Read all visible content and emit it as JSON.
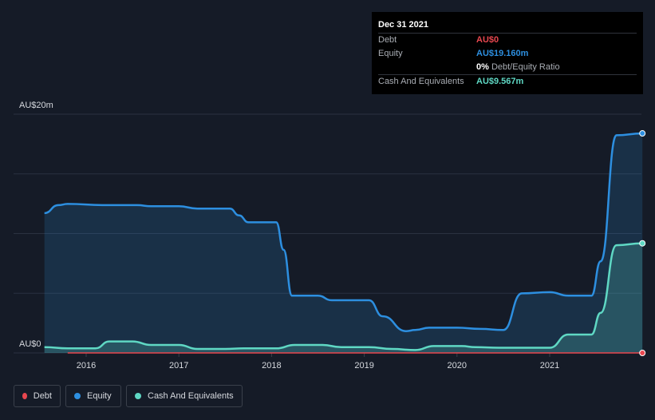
{
  "tooltip": {
    "date": "Dec 31 2021",
    "rows": [
      {
        "label": "Debt",
        "value": "AU$0",
        "color": "#e8474f"
      },
      {
        "label": "Equity",
        "value": "AU$19.160m",
        "color": "#2d8fe0"
      },
      {
        "label": "",
        "value": "0%",
        "sub": "Debt/Equity Ratio",
        "color": "#ffffff"
      },
      {
        "label": "Cash And Equivalents",
        "value": "AU$9.567m",
        "color": "#5fd8c4"
      }
    ]
  },
  "legend": [
    {
      "name": "Debt",
      "color": "#e8474f"
    },
    {
      "name": "Equity",
      "color": "#2d8fe0"
    },
    {
      "name": "Cash And Equivalents",
      "color": "#5fd8c4"
    }
  ],
  "chart_data": {
    "type": "area",
    "ylim": [
      0,
      20
    ],
    "y_tick_labels": [
      "AU$0",
      "AU$20m"
    ],
    "x_tick_labels": [
      "2016",
      "2017",
      "2018",
      "2019",
      "2020",
      "2021"
    ],
    "xlim": [
      2015.55,
      2022.0
    ],
    "grid": true,
    "legend_position": "bottom-left",
    "series": [
      {
        "name": "Equity",
        "color": "#2d8fe0",
        "points": [
          [
            2015.55,
            12.2
          ],
          [
            2015.7,
            12.9
          ],
          [
            2015.8,
            13.0
          ],
          [
            2016.2,
            12.9
          ],
          [
            2016.55,
            12.9
          ],
          [
            2016.7,
            12.8
          ],
          [
            2017.0,
            12.8
          ],
          [
            2017.2,
            12.6
          ],
          [
            2017.55,
            12.6
          ],
          [
            2017.65,
            12.0
          ],
          [
            2017.75,
            11.4
          ],
          [
            2018.05,
            11.4
          ],
          [
            2018.13,
            9.0
          ],
          [
            2018.22,
            5.0
          ],
          [
            2018.5,
            5.0
          ],
          [
            2018.65,
            4.6
          ],
          [
            2019.05,
            4.6
          ],
          [
            2019.2,
            3.2
          ],
          [
            2019.45,
            1.9
          ],
          [
            2019.55,
            2.0
          ],
          [
            2019.7,
            2.2
          ],
          [
            2020.0,
            2.2
          ],
          [
            2020.25,
            2.1
          ],
          [
            2020.5,
            2.0
          ],
          [
            2020.7,
            5.2
          ],
          [
            2021.0,
            5.3
          ],
          [
            2021.2,
            5.0
          ],
          [
            2021.45,
            5.0
          ],
          [
            2021.55,
            8.0
          ],
          [
            2021.72,
            19.0
          ],
          [
            2022.0,
            19.16
          ]
        ]
      },
      {
        "name": "Cash And Equivalents",
        "color": "#5fd8c4",
        "points": [
          [
            2015.55,
            0.5
          ],
          [
            2015.8,
            0.4
          ],
          [
            2016.1,
            0.4
          ],
          [
            2016.25,
            1.0
          ],
          [
            2016.5,
            1.0
          ],
          [
            2016.7,
            0.7
          ],
          [
            2017.0,
            0.7
          ],
          [
            2017.2,
            0.35
          ],
          [
            2017.5,
            0.35
          ],
          [
            2017.7,
            0.4
          ],
          [
            2018.05,
            0.4
          ],
          [
            2018.25,
            0.7
          ],
          [
            2018.55,
            0.7
          ],
          [
            2018.75,
            0.5
          ],
          [
            2019.05,
            0.5
          ],
          [
            2019.3,
            0.35
          ],
          [
            2019.55,
            0.25
          ],
          [
            2019.75,
            0.6
          ],
          [
            2020.05,
            0.6
          ],
          [
            2020.2,
            0.5
          ],
          [
            2020.45,
            0.45
          ],
          [
            2021.0,
            0.45
          ],
          [
            2021.2,
            1.6
          ],
          [
            2021.45,
            1.6
          ],
          [
            2021.55,
            3.5
          ],
          [
            2021.72,
            9.4
          ],
          [
            2022.0,
            9.567
          ]
        ]
      },
      {
        "name": "Debt",
        "color": "#e8474f",
        "points": [
          [
            2015.8,
            0
          ],
          [
            2022.0,
            0
          ]
        ]
      }
    ]
  }
}
